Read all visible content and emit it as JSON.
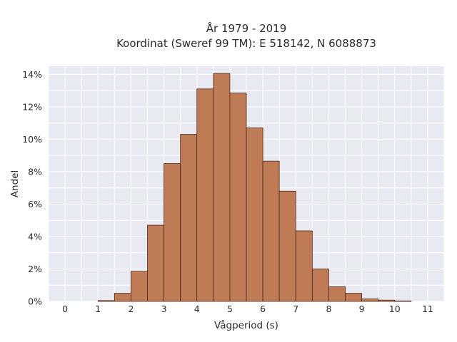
{
  "chart_data": {
    "type": "bar",
    "title_line1": "År 1979 - 2019",
    "title_line2": "Koordinat (Sweref 99 TM): E 518142, N 6088873",
    "xlabel": "Vågperiod (s)",
    "ylabel": "Andel",
    "xlim": [
      -0.5,
      11.5
    ],
    "ylim": [
      0,
      14.5
    ],
    "x_ticks": [
      "0",
      "1",
      "2",
      "3",
      "4",
      "5",
      "6",
      "7",
      "8",
      "9",
      "10",
      "11"
    ],
    "y_ticks": [
      "0%",
      "2%",
      "4%",
      "6%",
      "8%",
      "10%",
      "12%",
      "14%"
    ],
    "bin_width": 0.5,
    "bin_starts": [
      1.0,
      1.5,
      2.0,
      2.5,
      3.0,
      3.5,
      4.0,
      4.5,
      5.0,
      5.5,
      6.0,
      6.5,
      7.0,
      7.5,
      8.0,
      8.5,
      9.0,
      9.5,
      10.0
    ],
    "values": [
      0.05,
      0.5,
      1.85,
      4.7,
      8.5,
      10.3,
      13.1,
      14.05,
      12.85,
      10.7,
      8.65,
      6.8,
      4.35,
      2.0,
      0.9,
      0.5,
      0.15,
      0.08,
      0.03
    ],
    "value_unit": "%",
    "grid": true,
    "colors": {
      "bar_fill": "#bf7b55",
      "bar_edge": "#4a2a1a",
      "plot_background": "#e9e9f1",
      "grid": "#ffffff"
    }
  }
}
